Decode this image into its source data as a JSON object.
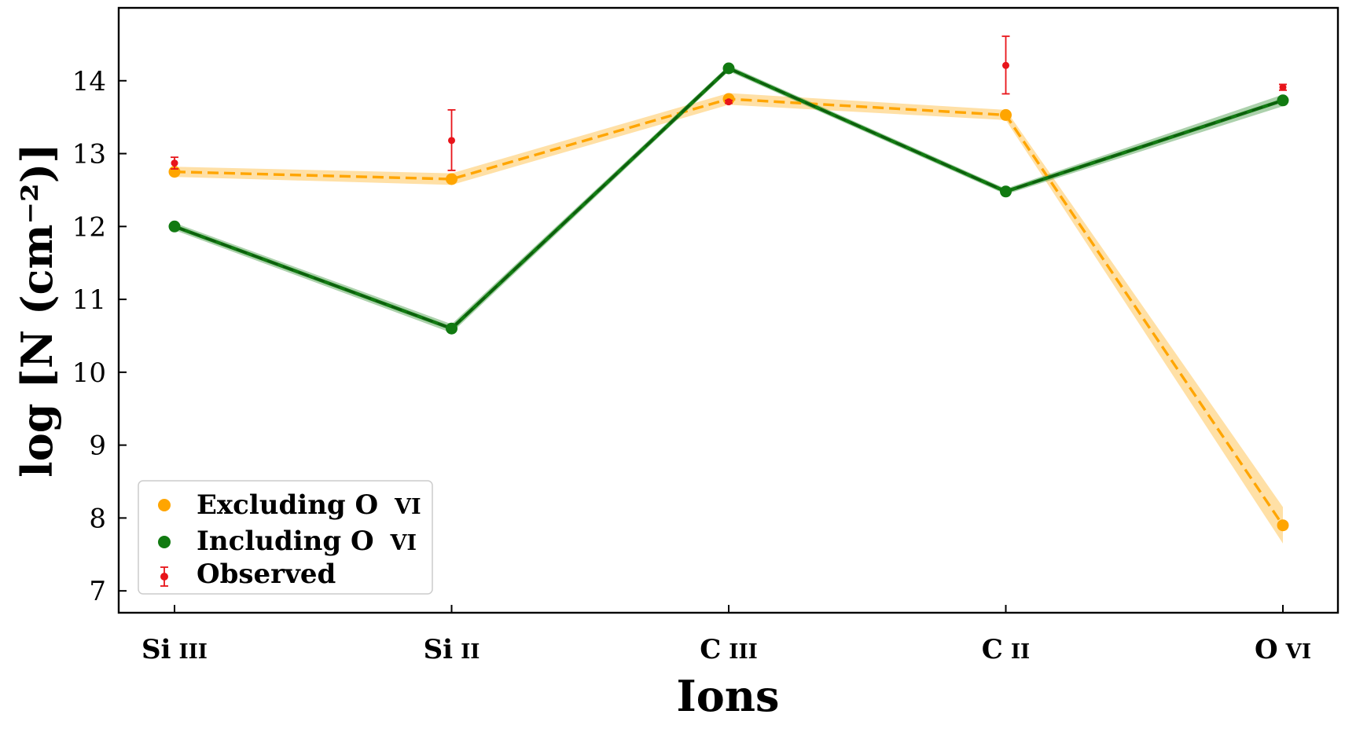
{
  "chart_data": {
    "type": "line",
    "xlabel": "Ions",
    "ylabel": "log [N (cm⁻²)]",
    "categories": [
      "Si III",
      "Si II",
      "C III",
      "C II",
      "O VI"
    ],
    "ylim": [
      6.7,
      15.0
    ],
    "yticks": [
      7,
      8,
      9,
      10,
      11,
      12,
      13,
      14
    ],
    "grid": false,
    "legend_position": "lower-left",
    "series": [
      {
        "name": "Excluding O VI",
        "color": "#FFA500",
        "values": [
          12.75,
          12.65,
          13.75,
          13.53,
          7.9
        ],
        "linestyle": "dashed",
        "band_halfwidth": [
          0.07,
          0.08,
          0.08,
          0.07,
          0.25
        ]
      },
      {
        "name": "Including O VI",
        "color": "#117A11",
        "values": [
          12.0,
          10.6,
          14.17,
          12.48,
          13.73
        ],
        "linestyle": "solid",
        "band_halfwidth": [
          0.05,
          0.06,
          0.04,
          0.04,
          0.08
        ]
      }
    ],
    "observed": {
      "name": "Observed",
      "color": "#E8141A",
      "points": [
        {
          "category": "Si III",
          "value": 12.87,
          "lower": 12.79,
          "upper": 12.95
        },
        {
          "category": "Si II",
          "value": 13.18,
          "lower": 12.77,
          "upper": 13.6
        },
        {
          "category": "C III",
          "value": 13.71,
          "lower": 13.69,
          "upper": 13.73
        },
        {
          "category": "C II",
          "value": 14.21,
          "lower": 13.82,
          "upper": 14.61
        },
        {
          "category": "O VI",
          "value": 13.91,
          "lower": 13.87,
          "upper": 13.95
        }
      ]
    }
  },
  "legend": {
    "items": [
      {
        "label_main": "Excluding O",
        "label_ion": "VI",
        "color": "#FFA500"
      },
      {
        "label_main": "Including O",
        "label_ion": "VI",
        "color": "#117A11"
      },
      {
        "label_main": "Observed",
        "label_ion": "",
        "color": "#E8141A"
      }
    ]
  },
  "xtick_labels": [
    {
      "element": "Si",
      "stage": "III"
    },
    {
      "element": "Si",
      "stage": "II"
    },
    {
      "element": "C",
      "stage": "III"
    },
    {
      "element": "C",
      "stage": "II"
    },
    {
      "element": "O",
      "stage": "VI"
    }
  ]
}
